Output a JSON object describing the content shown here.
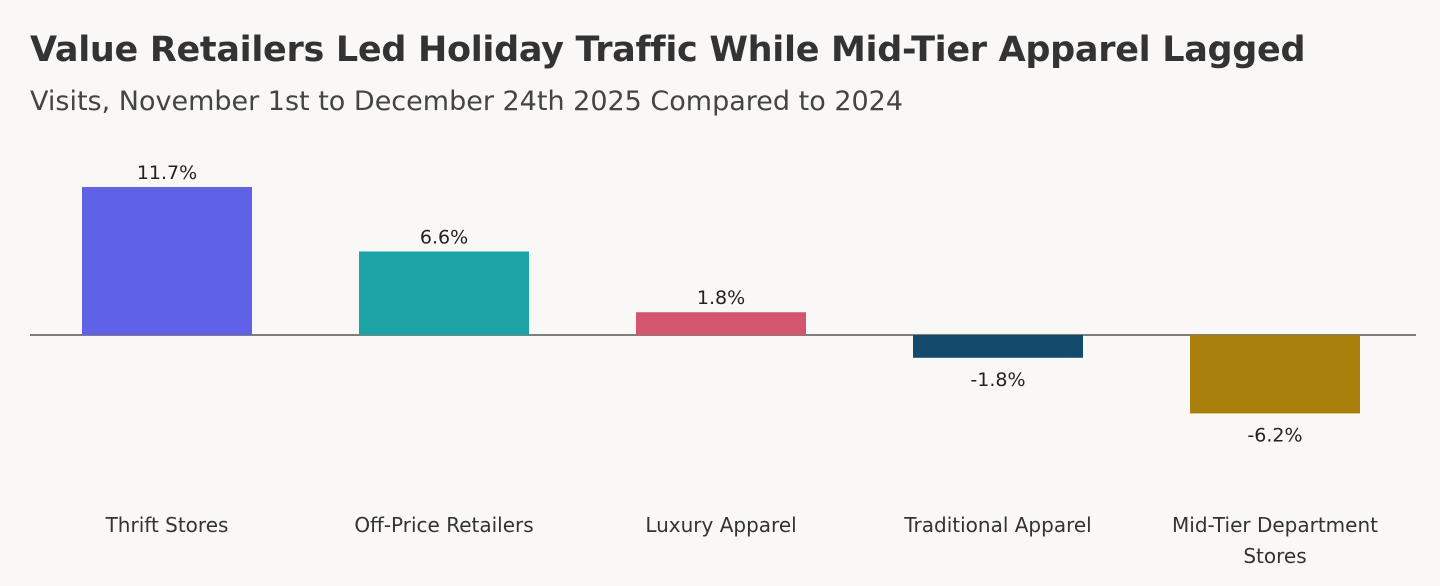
{
  "title": "Value Retailers Led Holiday Traffic While Mid-Tier Apparel Lagged",
  "subtitle": "Visits, November 1st to December 24th 2025 Compared to 2024",
  "chart_data": {
    "type": "bar",
    "title": "Value Retailers Led Holiday Traffic While Mid-Tier Apparel Lagged",
    "subtitle": "Visits, November 1st to December 24th 2025 Compared to 2024",
    "xlabel": "",
    "ylabel": "",
    "grid": false,
    "legend": "none",
    "categories": [
      [
        "Thrift Stores"
      ],
      [
        "Off-Price Retailers"
      ],
      [
        "Luxury Apparel"
      ],
      [
        "Traditional Apparel"
      ],
      [
        "Mid-Tier Department",
        "Stores"
      ]
    ],
    "values": [
      11.7,
      6.6,
      1.8,
      -1.8,
      -6.2
    ],
    "value_labels": [
      "11.7%",
      "6.6%",
      "1.8%",
      "-1.8%",
      "-6.2%"
    ],
    "colors": [
      "#5f62e6",
      "#1ca3a5",
      "#d4566e",
      "#144b6c",
      "#a8800b"
    ],
    "baseline_color": "#555555"
  }
}
